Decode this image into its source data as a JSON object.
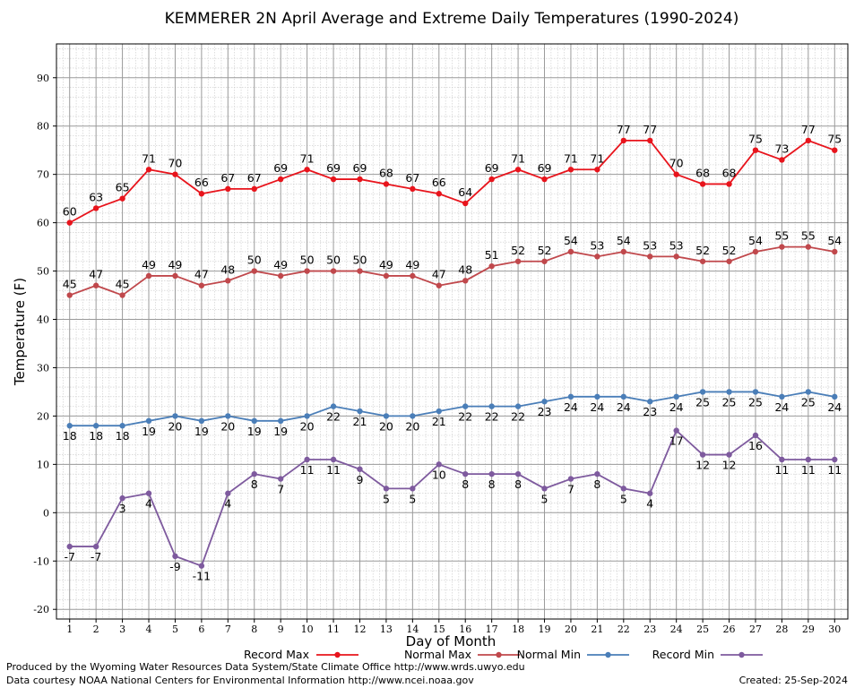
{
  "chart_data": {
    "type": "line",
    "title": "KEMMERER 2N April Average and Extreme Daily Temperatures (1990-2024)",
    "xlabel": "Day of Month",
    "ylabel": "Temperature (F)",
    "x": [
      1,
      2,
      3,
      4,
      5,
      6,
      7,
      8,
      9,
      10,
      11,
      12,
      13,
      14,
      15,
      16,
      17,
      18,
      19,
      20,
      21,
      22,
      23,
      24,
      25,
      26,
      27,
      28,
      29,
      30
    ],
    "xlim": [
      0.5,
      30.5
    ],
    "ylim": [
      -22,
      97
    ],
    "yticks": [
      -20,
      -10,
      0,
      10,
      20,
      30,
      40,
      50,
      60,
      70,
      80,
      90
    ],
    "grid": true,
    "legend_position": "bottom",
    "series": [
      {
        "name": "Record Max",
        "color": "#e8141c",
        "label_position": "above",
        "values": [
          60,
          63,
          65,
          71,
          70,
          66,
          67,
          67,
          69,
          71,
          69,
          69,
          68,
          67,
          66,
          64,
          69,
          71,
          69,
          71,
          71,
          77,
          77,
          70,
          68,
          68,
          75,
          73,
          77,
          75
        ]
      },
      {
        "name": "Normal Max",
        "color": "#c0484c",
        "label_position": "above",
        "values": [
          45,
          47,
          45,
          49,
          49,
          47,
          48,
          50,
          49,
          50,
          50,
          50,
          49,
          49,
          47,
          48,
          51,
          52,
          52,
          54,
          53,
          54,
          53,
          53,
          52,
          52,
          54,
          55,
          55,
          54
        ]
      },
      {
        "name": "Normal Min",
        "color": "#4a7eb8",
        "label_position": "below",
        "values": [
          18,
          18,
          18,
          19,
          20,
          19,
          20,
          19,
          19,
          20,
          22,
          21,
          20,
          20,
          21,
          22,
          22,
          22,
          23,
          24,
          24,
          24,
          23,
          24,
          25,
          25,
          25,
          24,
          25,
          24
        ]
      },
      {
        "name": "Record Min",
        "color": "#7e5a9e",
        "label_position": "below",
        "values": [
          -7,
          -7,
          3,
          4,
          -9,
          -11,
          4,
          8,
          7,
          11,
          11,
          9,
          5,
          5,
          10,
          8,
          8,
          8,
          5,
          7,
          8,
          5,
          4,
          17,
          12,
          12,
          16,
          11,
          11,
          11
        ]
      }
    ]
  },
  "footer": {
    "line1": "Produced by the Wyoming Water Resources Data System/State Climate Office http://www.wrds.uwyo.edu",
    "line2": "Data courtesy NOAA National Centers for Environmental Information http://www.ncei.noaa.gov",
    "created": "Created:  25-Sep-2024"
  }
}
